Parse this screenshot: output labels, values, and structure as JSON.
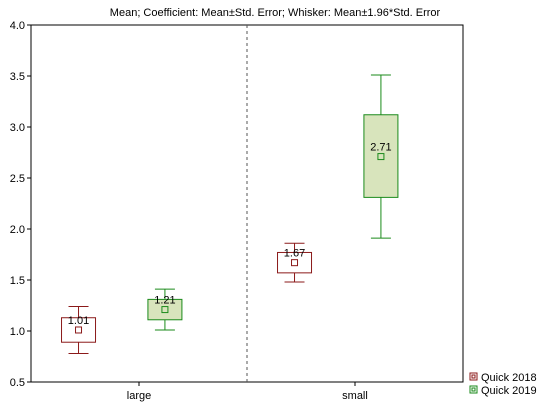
{
  "chart_data": {
    "type": "box",
    "title": "Mean; Coefficient: Mean±Std. Error; Whisker: Mean±1.96*Std. Error",
    "xlabel": "",
    "ylabel": "",
    "ylim": [
      0.5,
      4.0
    ],
    "yticks": [
      "0.5",
      "1.0",
      "1.5",
      "2.0",
      "2.5",
      "3.0",
      "3.5",
      "4.0"
    ],
    "categories": [
      "large",
      "small"
    ],
    "legend_position": "bottom-right",
    "series": [
      {
        "name": "Quick 2018",
        "color": "#8b1a1a",
        "fill": "#ffffff",
        "mean": [
          1.01,
          1.67
        ],
        "mean_labels": [
          "1.01",
          "1.67"
        ],
        "box_low": [
          0.89,
          1.57
        ],
        "box_high": [
          1.13,
          1.77
        ],
        "whisker_low": [
          0.78,
          1.48
        ],
        "whisker_high": [
          1.24,
          1.86
        ]
      },
      {
        "name": "Quick 2019",
        "color": "#1a8a1a",
        "fill": "#d8e4bc",
        "mean": [
          1.21,
          2.71
        ],
        "mean_labels": [
          "1.21",
          "2.71"
        ],
        "box_low": [
          1.11,
          2.31
        ],
        "box_high": [
          1.31,
          3.12
        ],
        "whisker_low": [
          1.01,
          1.91
        ],
        "whisker_high": [
          1.41,
          3.51
        ]
      }
    ]
  }
}
